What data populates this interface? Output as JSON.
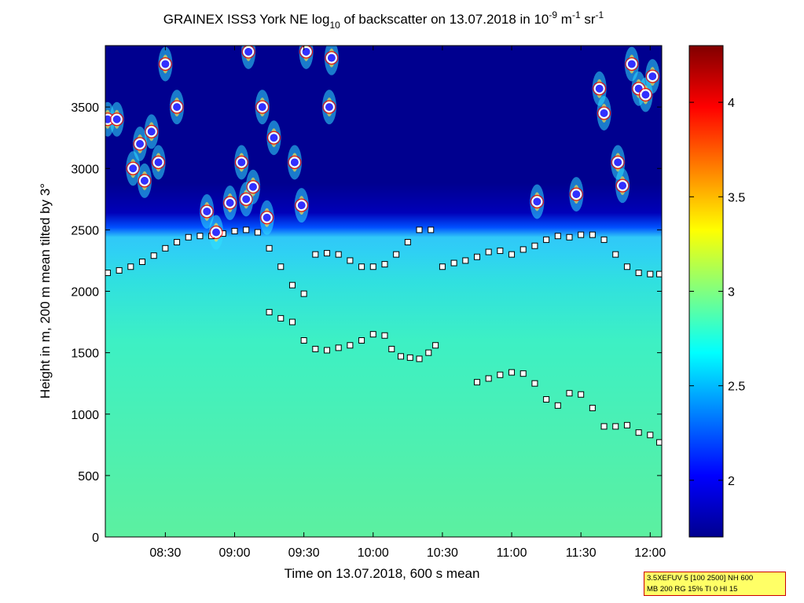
{
  "chart_data": {
    "type": "heatmap",
    "title": {
      "prefix": "GRAINEX ISS3 York NE log",
      "log_base": "10",
      "middle": " of backscatter on 13.07.2018 in 10",
      "exp1": "-9",
      "unit1": " m",
      "exp2": "-1",
      "unit2": " sr",
      "exp3": "-1"
    },
    "xlabel": "Time on 13.07.2018, 600 s mean",
    "ylabel": "Height in m, 200 m mean tilted by 3°",
    "x_ticks": [
      "08:30",
      "09:00",
      "09:30",
      "10:00",
      "10:30",
      "11:00",
      "11:30",
      "12:00"
    ],
    "xlim": [
      "08:04",
      "12:05"
    ],
    "y_ticks": [
      "0",
      "500",
      "1000",
      "1500",
      "2000",
      "2500",
      "3000",
      "3500"
    ],
    "ylim": [
      0,
      4000
    ],
    "colorbar": {
      "ticks": [
        "2",
        "2.5",
        "3",
        "3.5",
        "4"
      ],
      "range": [
        1.7,
        4.3
      ],
      "colormap": [
        "#00008f",
        "#0000ff",
        "#0080ff",
        "#00ffff",
        "#80ff80",
        "#ffff00",
        "#ff8000",
        "#ff0000",
        "#800000"
      ]
    },
    "background_zones": [
      {
        "from_m": 0,
        "to_m": 700,
        "log_value": 2.85,
        "color": "#55f0a8"
      },
      {
        "from_m": 700,
        "to_m": 1800,
        "log_value": 2.75,
        "color": "#3ff0c0"
      },
      {
        "from_m": 1800,
        "to_m": 2450,
        "log_value": 2.6,
        "color": "#35d0f0"
      },
      {
        "from_m": 2450,
        "to_m": 4000,
        "log_value": 1.8,
        "color": "#00008f"
      }
    ],
    "series": [
      {
        "name": "",
        "marker": "square",
        "x": [
          "08:05",
          "08:10",
          "08:15",
          "08:20",
          "08:25",
          "08:30",
          "08:35",
          "08:40",
          "08:45",
          "08:50",
          "08:55",
          "09:00",
          "09:05",
          "09:10",
          "09:15",
          "09:20",
          "09:25",
          "09:30",
          "09:35",
          "09:40",
          "09:45",
          "09:50",
          "09:55",
          "10:00",
          "10:05",
          "10:10",
          "10:15",
          "10:20",
          "10:25",
          "10:30",
          "10:35",
          "10:40",
          "10:45",
          "10:50",
          "10:55",
          "11:00",
          "11:05",
          "11:10",
          "11:15",
          "11:20",
          "11:25",
          "11:30",
          "11:35",
          "11:40",
          "11:45",
          "11:50",
          "11:55",
          "12:00",
          "12:04"
        ],
        "y": [
          2150,
          2170,
          2200,
          2240,
          2290,
          2350,
          2400,
          2440,
          2450,
          2450,
          2470,
          2490,
          2500,
          2480,
          2350,
          2200,
          2050,
          1980,
          2300,
          2310,
          2300,
          2250,
          2200,
          2200,
          2220,
          2300,
          2400,
          2500,
          2500,
          2200,
          2230,
          2250,
          2280,
          2320,
          2330,
          2300,
          2340,
          2370,
          2420,
          2450,
          2440,
          2460,
          2460,
          2420,
          2300,
          2200,
          2150,
          2140,
          2140
        ]
      },
      {
        "name": "",
        "marker": "square",
        "x": [
          "09:15",
          "09:20",
          "09:25",
          "09:30",
          "09:35",
          "09:40",
          "09:45",
          "09:50",
          "09:55",
          "10:00",
          "10:05",
          "10:08",
          "10:12",
          "10:16",
          "10:20",
          "10:24",
          "10:27"
        ],
        "y": [
          1830,
          1780,
          1750,
          1600,
          1530,
          1520,
          1540,
          1560,
          1600,
          1650,
          1640,
          1530,
          1470,
          1460,
          1450,
          1500,
          1560
        ]
      },
      {
        "name": "",
        "marker": "square",
        "x": [
          "10:45",
          "10:50",
          "10:55",
          "11:00",
          "11:05",
          "11:10",
          "11:15",
          "11:20",
          "11:25",
          "11:30",
          "11:35",
          "11:40",
          "11:45",
          "11:50",
          "11:55",
          "12:00",
          "12:04"
        ],
        "y": [
          1260,
          1290,
          1320,
          1340,
          1330,
          1250,
          1120,
          1070,
          1170,
          1160,
          1050,
          900,
          900,
          910,
          850,
          830,
          770
        ]
      },
      {
        "name": "",
        "marker": "circle",
        "x": [
          "08:05",
          "08:09",
          "08:16",
          "08:19",
          "08:21",
          "08:24",
          "08:27",
          "08:30",
          "08:35",
          "08:48",
          "08:52",
          "08:58",
          "09:03",
          "09:05",
          "09:06",
          "09:08",
          "09:12",
          "09:14",
          "09:17",
          "09:26",
          "09:29",
          "09:31",
          "09:41",
          "09:42",
          "11:11",
          "11:28",
          "11:38",
          "11:40",
          "11:46",
          "11:48",
          "11:52",
          "11:55",
          "11:58",
          "12:01"
        ],
        "y": [
          3400,
          3400,
          3000,
          3200,
          2900,
          3300,
          3050,
          3850,
          3500,
          2650,
          2480,
          2720,
          3050,
          2750,
          3950,
          2850,
          3500,
          2600,
          3250,
          3050,
          2700,
          3950,
          3500,
          3900,
          2730,
          2790,
          3650,
          3450,
          3050,
          2860,
          3850,
          3650,
          3600,
          3750
        ]
      }
    ]
  },
  "info_box": {
    "line1": "3.5XEFUV 5 [100 2500] NH 600",
    "line2": "MB 200 RG 15% TI 0 HI 15"
  }
}
